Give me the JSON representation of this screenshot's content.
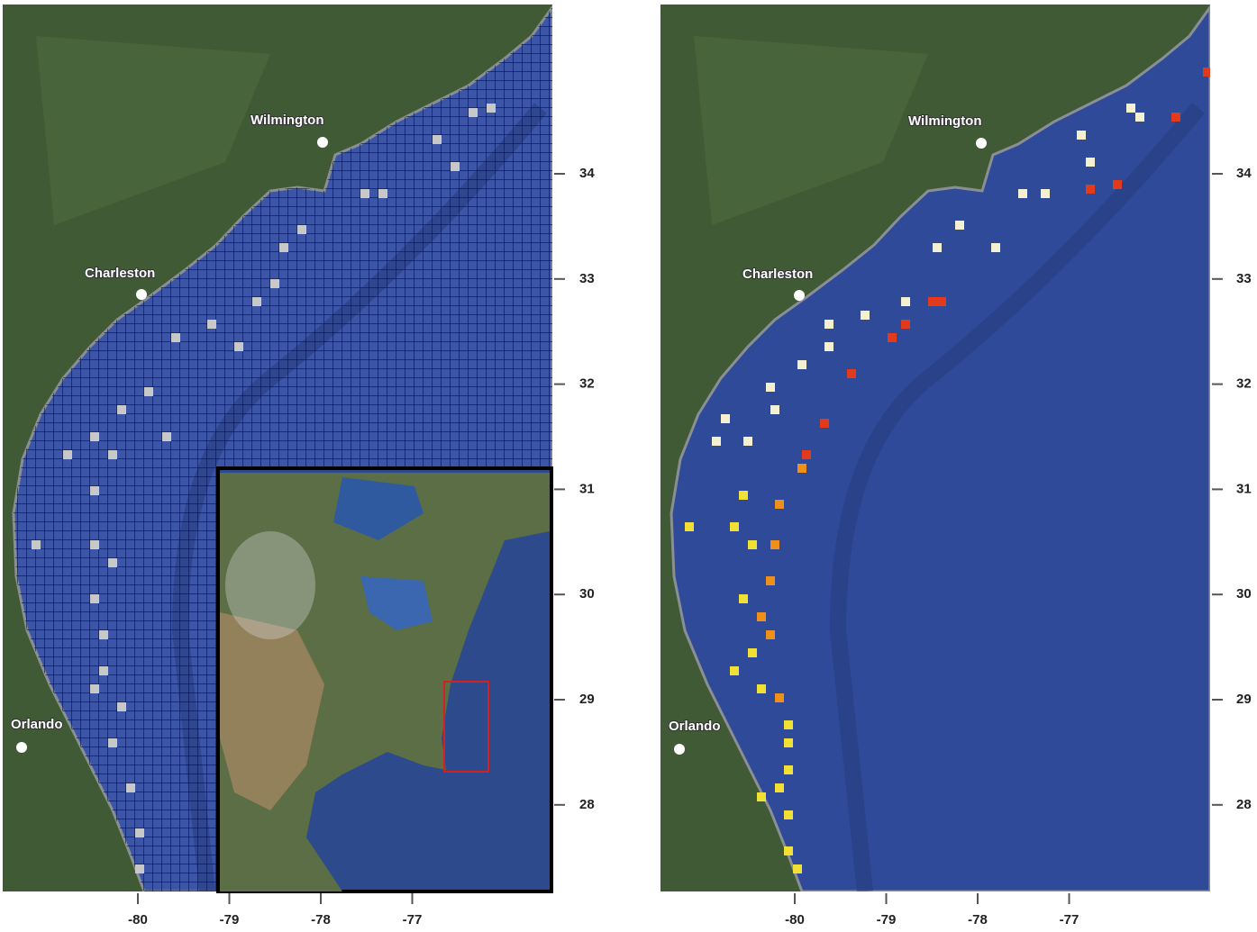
{
  "panels": [
    {
      "cities": [
        {
          "label": "Wilmington"
        },
        {
          "label": "Charleston"
        },
        {
          "label": "Orlando"
        }
      ],
      "lon_ticks": [
        -80,
        -79,
        -78,
        -77
      ],
      "lat_ticks": [
        28,
        29,
        30,
        31,
        32,
        33,
        34
      ]
    },
    {
      "cities": [
        {
          "label": "Wilmington"
        },
        {
          "label": "Charleston"
        },
        {
          "label": "Orlando"
        }
      ],
      "lon_ticks": [
        -80,
        -79,
        -78,
        -77
      ],
      "lat_ticks": [
        28,
        29,
        30,
        31,
        32,
        33,
        34
      ]
    }
  ]
}
